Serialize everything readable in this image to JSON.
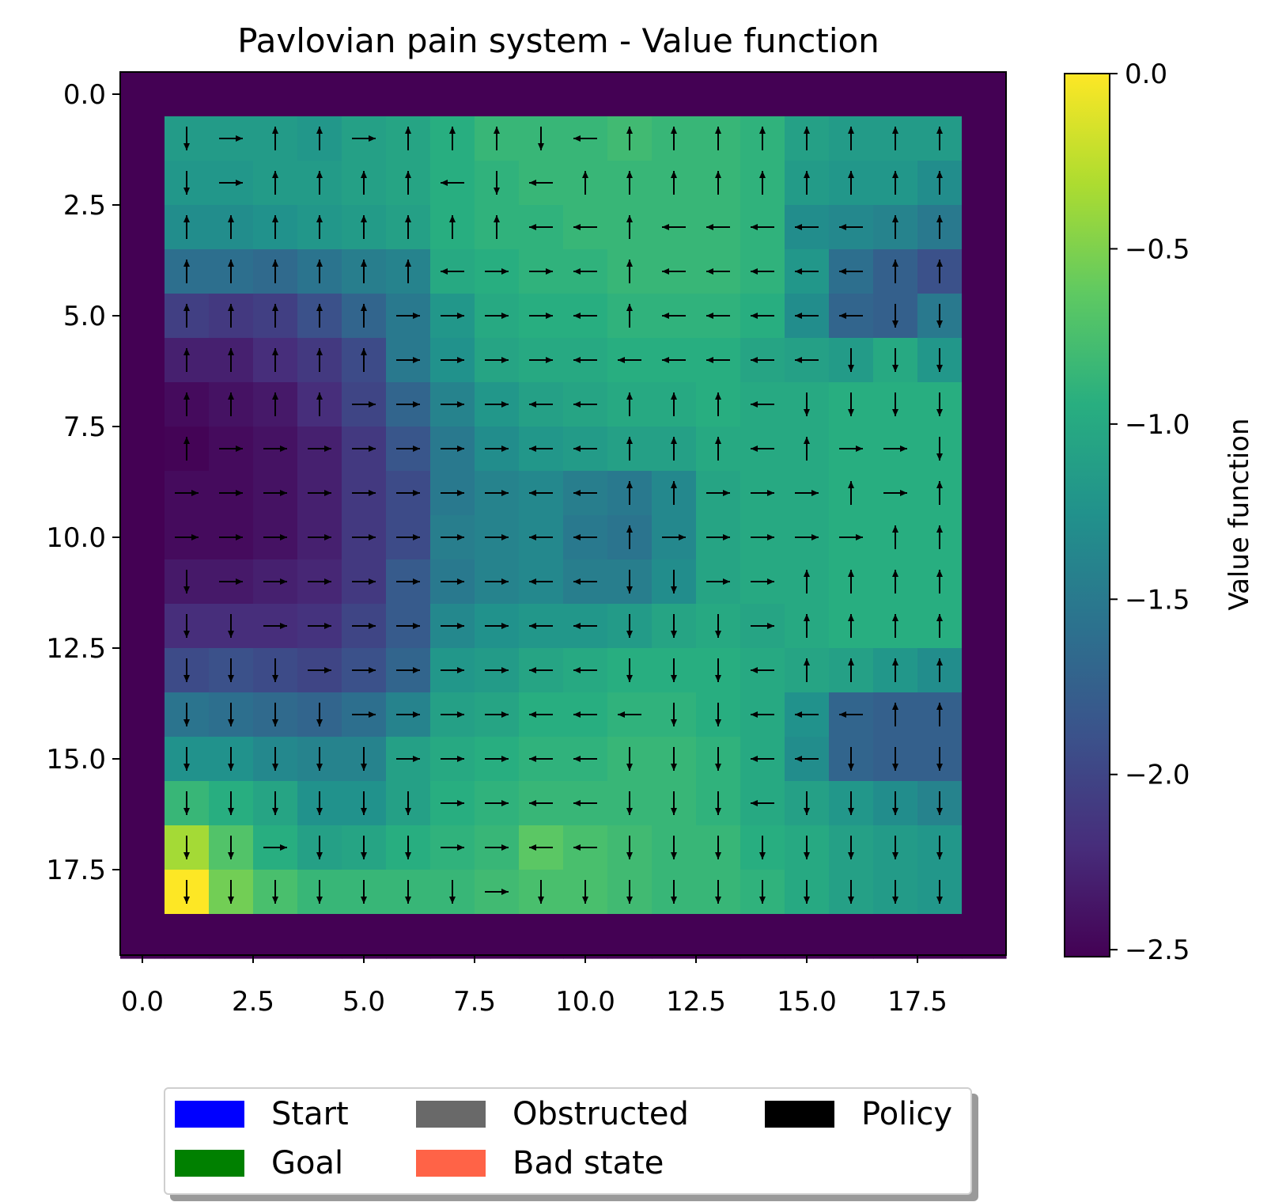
{
  "chart_data": {
    "type": "heatmap",
    "title": "Pavlovian pain system - Value function",
    "colorbar_label": "Value function",
    "colormap": "viridis",
    "value_range": [
      -2.52,
      0.0
    ],
    "grid_size": [
      20,
      20
    ],
    "extent": [
      -0.5,
      19.5,
      19.5,
      -0.5
    ],
    "y_inverted": true,
    "x_ticks": [
      "0.0",
      "2.5",
      "5.0",
      "7.5",
      "10.0",
      "12.5",
      "15.0",
      "17.5"
    ],
    "y_ticks": [
      "0.0",
      "2.5",
      "5.0",
      "7.5",
      "10.0",
      "12.5",
      "15.0",
      "17.5"
    ],
    "colorbar_ticks": [
      "0.0",
      "−0.5",
      "−1.0",
      "−1.5",
      "−2.0",
      "−2.5"
    ],
    "colorbar_tick_values": [
      0.0,
      -0.5,
      -1.0,
      -1.5,
      -2.0,
      -2.5
    ],
    "inner_rows_note_values_rows_1_to_18_cols_1_to_18": [
      [
        -1.15,
        -1.15,
        -1.15,
        -1.2,
        -1.1,
        -1.05,
        -0.95,
        -0.85,
        -0.85,
        -0.85,
        -0.8,
        -0.85,
        -0.85,
        -0.9,
        -1.1,
        -1.15,
        -1.15,
        -1.15
      ],
      [
        -1.2,
        -1.2,
        -1.15,
        -1.15,
        -1.1,
        -1.05,
        -0.95,
        -0.9,
        -0.85,
        -0.85,
        -0.85,
        -0.85,
        -0.85,
        -0.9,
        -1.15,
        -1.2,
        -1.2,
        -1.3
      ],
      [
        -1.3,
        -1.3,
        -1.25,
        -1.2,
        -1.15,
        -1.1,
        -0.95,
        -0.9,
        -0.9,
        -0.85,
        -0.85,
        -0.85,
        -0.85,
        -0.9,
        -1.3,
        -1.35,
        -1.4,
        -1.5
      ],
      [
        -1.6,
        -1.6,
        -1.65,
        -1.55,
        -1.45,
        -1.4,
        -1.0,
        -0.95,
        -0.9,
        -0.9,
        -0.85,
        -0.85,
        -0.85,
        -0.9,
        -1.2,
        -1.6,
        -1.75,
        -1.9
      ],
      [
        -2.05,
        -2.1,
        -2.05,
        -1.9,
        -1.7,
        -1.5,
        -1.2,
        -1.0,
        -0.95,
        -0.95,
        -0.9,
        -0.9,
        -0.9,
        -0.95,
        -1.3,
        -1.7,
        -1.75,
        -1.5
      ],
      [
        -2.3,
        -2.3,
        -2.2,
        -2.1,
        -1.95,
        -1.5,
        -1.25,
        -1.05,
        -1.0,
        -1.0,
        -0.95,
        -0.95,
        -0.95,
        -1.05,
        -1.1,
        -1.15,
        -1.0,
        -1.2
      ],
      [
        -2.45,
        -2.4,
        -2.35,
        -2.2,
        -2.0,
        -1.7,
        -1.4,
        -1.2,
        -1.1,
        -1.05,
        -1.0,
        -1.0,
        -0.95,
        -1.0,
        -1.0,
        -0.95,
        -0.95,
        -0.95
      ],
      [
        -2.5,
        -2.45,
        -2.4,
        -2.3,
        -2.1,
        -1.85,
        -1.5,
        -1.3,
        -1.2,
        -1.15,
        -1.1,
        -1.1,
        -1.0,
        -1.0,
        -1.0,
        -0.95,
        -0.95,
        -0.95
      ],
      [
        -2.45,
        -2.45,
        -2.4,
        -2.3,
        -2.1,
        -1.95,
        -1.5,
        -1.4,
        -1.35,
        -1.45,
        -1.5,
        -1.35,
        -1.05,
        -1.0,
        -1.0,
        -0.95,
        -0.95,
        -0.95
      ],
      [
        -2.45,
        -2.45,
        -2.4,
        -2.3,
        -2.1,
        -1.95,
        -1.45,
        -1.4,
        -1.35,
        -1.5,
        -1.55,
        -1.35,
        -1.05,
        -1.0,
        -1.0,
        -0.95,
        -0.95,
        -0.95
      ],
      [
        -2.35,
        -2.35,
        -2.3,
        -2.25,
        -2.1,
        -1.8,
        -1.5,
        -1.4,
        -1.35,
        -1.45,
        -1.45,
        -1.3,
        -1.05,
        -1.0,
        -1.0,
        -0.95,
        -0.95,
        -0.95
      ],
      [
        -2.2,
        -2.2,
        -2.2,
        -2.15,
        -2.0,
        -1.8,
        -1.35,
        -1.25,
        -1.2,
        -1.2,
        -1.15,
        -1.05,
        -1.0,
        -1.05,
        -1.0,
        -0.95,
        -0.95,
        -0.95
      ],
      [
        -1.95,
        -1.9,
        -1.95,
        -2.0,
        -1.9,
        -1.7,
        -1.2,
        -1.15,
        -1.05,
        -1.0,
        -0.95,
        -0.95,
        -0.95,
        -1.0,
        -1.05,
        -1.1,
        -1.2,
        -1.3
      ],
      [
        -1.55,
        -1.6,
        -1.65,
        -1.7,
        -1.6,
        -1.4,
        -1.1,
        -1.05,
        -0.95,
        -0.95,
        -0.9,
        -0.9,
        -0.95,
        -1.0,
        -1.25,
        -1.7,
        -1.75,
        -1.75
      ],
      [
        -1.25,
        -1.25,
        -1.35,
        -1.4,
        -1.4,
        -1.1,
        -1.0,
        -0.95,
        -0.9,
        -0.9,
        -0.85,
        -0.85,
        -0.9,
        -1.0,
        -1.3,
        -1.7,
        -1.75,
        -1.75
      ],
      [
        -0.85,
        -0.95,
        -1.05,
        -1.25,
        -1.25,
        -1.1,
        -0.95,
        -0.9,
        -0.85,
        -0.85,
        -0.85,
        -0.85,
        -0.9,
        -1.0,
        -1.1,
        -1.2,
        -1.3,
        -1.4
      ],
      [
        -0.35,
        -0.7,
        -0.95,
        -1.1,
        -1.05,
        -0.95,
        -0.9,
        -0.85,
        -0.65,
        -0.75,
        -0.8,
        -0.85,
        -0.85,
        -0.95,
        -1.0,
        -1.1,
        -1.15,
        -1.2
      ],
      [
        0.0,
        -0.55,
        -0.75,
        -0.85,
        -0.85,
        -0.85,
        -0.85,
        -0.8,
        -0.75,
        -0.75,
        -0.8,
        -0.85,
        -0.85,
        -0.9,
        -1.0,
        -1.1,
        -1.15,
        -1.2
      ]
    ],
    "policy_arrows_rows_1_to_18": [
      "DRUURUUUDLUUUUUUUU",
      "DRUUUULDLUUUUUUUUU",
      "UUUUUUUULLULLLLLUU",
      "UUUUUULRRLULLLLLUU",
      "UUUUURRRRLULLLLLDD",
      "UUUUURRRRLLLLLLDDD",
      "UUUURRRRLLUUULDDDD",
      "URRRRRRRLLUUULURRD",
      "RRRRRRRRLLUURRRURU",
      "RRRRRRRRLLURRRRRUU",
      "DRRRRRRRLLDDRRUUUU",
      "DDRRRRRRLLDDDRUUUU",
      "DDDRRRRRLLDDDLUUUU",
      "DDDDRRRRLLLDDLLLUU",
      "DDDDDRRRLLDDDLLDDD",
      "DDDDDDRRLLDDDLDDDD",
      "DDRDDDRRLLDDDDDDDD",
      "DDDDDDDRDDDDDDDDDD"
    ]
  },
  "legend": {
    "items": [
      {
        "label": "Start",
        "color": "#0000ff"
      },
      {
        "label": "Goal",
        "color": "#008000"
      },
      {
        "label": "Obstructed",
        "color": "#696969"
      },
      {
        "label": "Bad state",
        "color": "#ff6347"
      },
      {
        "label": "Policy",
        "color": "#000000"
      }
    ]
  }
}
